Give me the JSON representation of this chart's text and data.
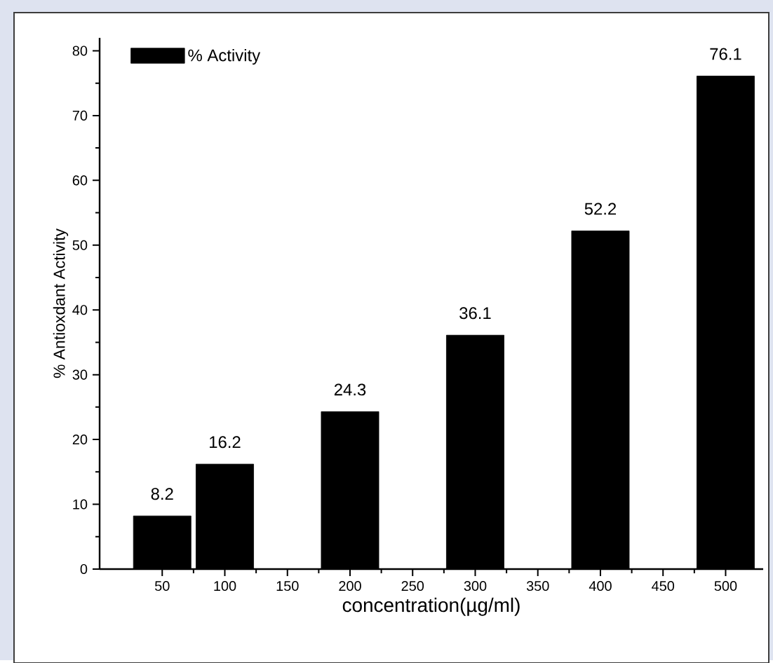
{
  "chart_data": {
    "type": "bar",
    "xlabel": "concentration(µg/ml)",
    "ylabel": "% Antioxdant Activity",
    "x": [
      50,
      100,
      200,
      300,
      400,
      500
    ],
    "series": [
      {
        "name": "% Activity",
        "color": "#000000",
        "values": [
          8.2,
          16.2,
          24.3,
          36.1,
          52.2,
          76.1
        ]
      }
    ],
    "xlim": [
      0,
      530
    ],
    "xticks": [
      50,
      100,
      150,
      200,
      250,
      300,
      350,
      400,
      450,
      500
    ],
    "ylim": [
      0,
      82
    ],
    "yticks": [
      0,
      10,
      20,
      30,
      40,
      50,
      60,
      70,
      80
    ],
    "data_labels": true,
    "legend": "top left",
    "grid": false
  }
}
